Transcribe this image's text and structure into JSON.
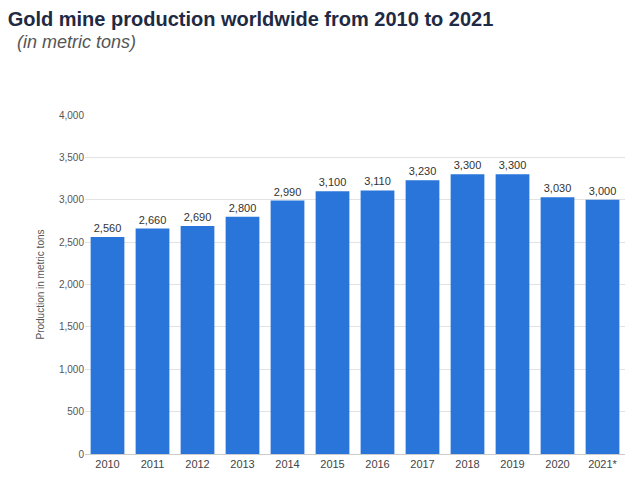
{
  "chart_data": {
    "type": "bar",
    "title": "Gold mine production worldwide from 2010 to 2021",
    "subtitle": "(in metric tons)",
    "y_label": "Production in metric tons",
    "categories": [
      "2010",
      "2011",
      "2012",
      "2013",
      "2014",
      "2015",
      "2016",
      "2017",
      "2018",
      "2019",
      "2020",
      "2021*"
    ],
    "values": [
      2560,
      2660,
      2690,
      2800,
      2990,
      3100,
      3110,
      3230,
      3300,
      3300,
      3030,
      3000
    ],
    "value_labels": [
      "2,560",
      "2,660",
      "2,690",
      "2,800",
      "2,990",
      "3,100",
      "3,110",
      "3,230",
      "3,300",
      "3,300",
      "3,030",
      "3,000"
    ],
    "color": "#2a75d9",
    "ylim": [
      0,
      4000
    ],
    "yticks": [
      0,
      500,
      {
        "value": 1000,
        "label": "1,000"
      },
      {
        "value": 1500,
        "label": "1,500"
      },
      {
        "value": 2000,
        "label": "2,000"
      },
      {
        "value": 2500,
        "label": "2,500"
      },
      {
        "value": 3000,
        "label": "3,000"
      },
      {
        "value": 3500,
        "label": "3,500"
      },
      {
        "value": 4000,
        "label": "4,000"
      }
    ],
    "grid": true,
    "data_labels": true
  }
}
